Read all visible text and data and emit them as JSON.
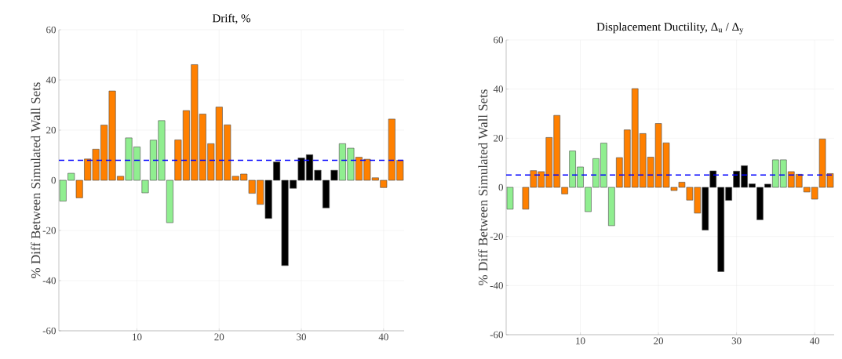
{
  "chart_data": [
    {
      "type": "bar",
      "title": "Drift, %",
      "ylabel": "% Diff Between Simulated Wall Sets",
      "x": [
        1,
        2,
        3,
        4,
        5,
        6,
        7,
        8,
        9,
        10,
        11,
        12,
        13,
        14,
        15,
        16,
        17,
        18,
        19,
        20,
        21,
        22,
        23,
        24,
        25,
        26,
        27,
        28,
        29,
        30,
        31,
        32,
        33,
        34,
        35,
        36,
        37,
        38,
        39,
        40,
        41,
        42
      ],
      "values": [
        -8.3,
        2.8,
        -7,
        8.5,
        12.4,
        22,
        35.6,
        1.6,
        16.9,
        13.3,
        -5,
        16,
        23.8,
        -16.9,
        16.1,
        27.8,
        46.1,
        26.4,
        14.6,
        29.2,
        22.1,
        1.6,
        2.5,
        -5.2,
        -9.6,
        -15.2,
        7.3,
        -34,
        -3.2,
        8.9,
        10.2,
        4,
        -11,
        4,
        14.6,
        12.8,
        9.2,
        8.4,
        1,
        -2.9,
        24.4,
        8
      ],
      "colors": [
        "#90ee90",
        "#90ee90",
        "#ff8000",
        "#ff8000",
        "#ff8000",
        "#ff8000",
        "#ff8000",
        "#ff8000",
        "#90ee90",
        "#90ee90",
        "#90ee90",
        "#90ee90",
        "#90ee90",
        "#90ee90",
        "#ff8000",
        "#ff8000",
        "#ff8000",
        "#ff8000",
        "#ff8000",
        "#ff8000",
        "#ff8000",
        "#ff8000",
        "#ff8000",
        "#ff8000",
        "#ff8000",
        "#000000",
        "#000000",
        "#000000",
        "#000000",
        "#000000",
        "#000000",
        "#000000",
        "#000000",
        "#000000",
        "#90ee90",
        "#90ee90",
        "#ff8000",
        "#ff8000",
        "#ff8000",
        "#ff8000",
        "#ff8000",
        "#ff8000"
      ],
      "xlim": [
        0.5,
        42.5
      ],
      "xticks": [
        10,
        20,
        30,
        40
      ],
      "ylim": [
        -60,
        60
      ],
      "yticks": [
        -60,
        -40,
        -20,
        0,
        20,
        40,
        60
      ],
      "ref_lines": [
        {
          "axis": "y",
          "value": 8,
          "color": "#0000ff",
          "line_style": "dashed"
        }
      ],
      "grid": true
    },
    {
      "type": "bar",
      "title": "Displacement Ductility, Δ$_{u}$ / Δ$_{y}$",
      "ylabel": "% Diff Between Simulated Wall Sets",
      "x": [
        1,
        2,
        3,
        4,
        5,
        6,
        7,
        8,
        9,
        10,
        11,
        12,
        13,
        14,
        15,
        16,
        17,
        18,
        19,
        20,
        21,
        22,
        23,
        24,
        25,
        26,
        27,
        28,
        29,
        30,
        31,
        32,
        33,
        34,
        35,
        36,
        37,
        38,
        39,
        40,
        41,
        42
      ],
      "values": [
        -8.9,
        null,
        -8.9,
        6.8,
        6.4,
        20.3,
        29.3,
        -2.7,
        14.8,
        8.3,
        -9.9,
        11.7,
        18,
        -15.6,
        12.1,
        23.4,
        40.2,
        21.9,
        12.3,
        26,
        18.1,
        -1.3,
        2.1,
        -5.2,
        -10.5,
        -17.4,
        6.7,
        -34.3,
        -5.3,
        6.6,
        8.8,
        1.4,
        -13.2,
        1.3,
        11.2,
        11.2,
        6.4,
        5.3,
        -1.9,
        -4.8,
        19.7,
        5.6
      ],
      "colors": [
        "#90ee90",
        "#90ee90",
        "#ff8000",
        "#ff8000",
        "#ff8000",
        "#ff8000",
        "#ff8000",
        "#ff8000",
        "#90ee90",
        "#90ee90",
        "#90ee90",
        "#90ee90",
        "#90ee90",
        "#90ee90",
        "#ff8000",
        "#ff8000",
        "#ff8000",
        "#ff8000",
        "#ff8000",
        "#ff8000",
        "#ff8000",
        "#ff8000",
        "#ff8000",
        "#ff8000",
        "#ff8000",
        "#000000",
        "#000000",
        "#000000",
        "#000000",
        "#000000",
        "#000000",
        "#000000",
        "#000000",
        "#000000",
        "#90ee90",
        "#90ee90",
        "#ff8000",
        "#ff8000",
        "#ff8000",
        "#ff8000",
        "#ff8000",
        "#ff8000"
      ],
      "xlim": [
        0.5,
        42.5
      ],
      "xticks": [
        10,
        20,
        30,
        40
      ],
      "ylim": [
        -60,
        60
      ],
      "yticks": [
        -60,
        -40,
        -20,
        0,
        20,
        40,
        60
      ],
      "ref_lines": [
        {
          "axis": "y",
          "value": 5,
          "color": "#0000ff",
          "line_style": "dashed"
        }
      ],
      "grid": true
    }
  ]
}
